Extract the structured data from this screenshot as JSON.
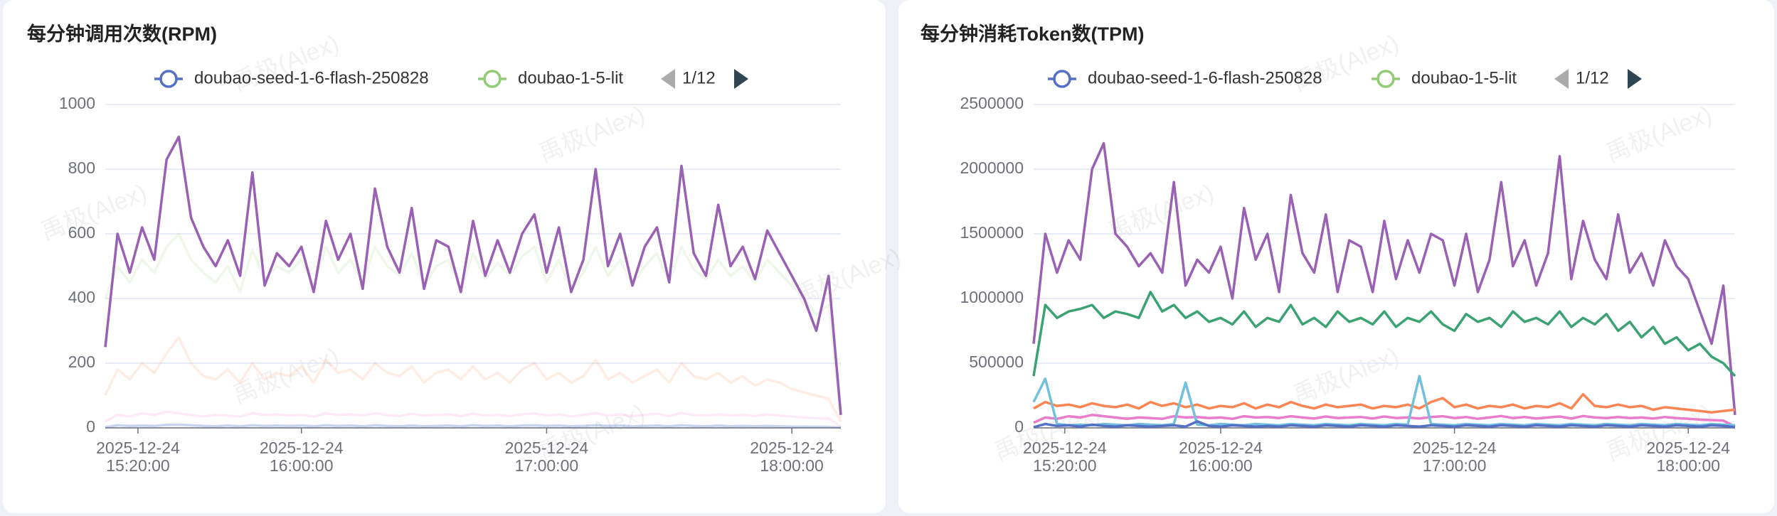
{
  "watermark": "禹极(Alex)",
  "chart_data": [
    {
      "type": "line",
      "title": "每分钟调用次数(RPM)",
      "legend": {
        "items": [
          {
            "name": "doubao-seed-1-6-flash-250828",
            "color": "#5470c6"
          },
          {
            "name": "doubao-1-5-lit",
            "color": "#91cc75"
          }
        ],
        "page": "1/12"
      },
      "xlim": [
        "2025-12-24 15:12:00",
        "2025-12-24 18:12:00"
      ],
      "xticks": [
        "2025-12-24 15:20:00",
        "2025-12-24 16:00:00",
        "2025-12-24 17:00:00",
        "2025-12-24 18:00:00"
      ],
      "ylim": [
        0,
        1000
      ],
      "yticks": [
        0,
        200,
        400,
        600,
        800,
        1000
      ],
      "grid": true,
      "x": [
        "2025-12-24 15:12:00",
        "2025-12-24 15:15:00",
        "2025-12-24 15:18:00",
        "2025-12-24 15:21:00",
        "2025-12-24 15:24:00",
        "2025-12-24 15:27:00",
        "2025-12-24 15:30:00",
        "2025-12-24 15:33:00",
        "2025-12-24 15:36:00",
        "2025-12-24 15:39:00",
        "2025-12-24 15:42:00",
        "2025-12-24 15:45:00",
        "2025-12-24 15:48:00",
        "2025-12-24 15:51:00",
        "2025-12-24 15:54:00",
        "2025-12-24 15:57:00",
        "2025-12-24 16:00:00",
        "2025-12-24 16:03:00",
        "2025-12-24 16:06:00",
        "2025-12-24 16:09:00",
        "2025-12-24 16:12:00",
        "2025-12-24 16:15:00",
        "2025-12-24 16:18:00",
        "2025-12-24 16:21:00",
        "2025-12-24 16:24:00",
        "2025-12-24 16:27:00",
        "2025-12-24 16:30:00",
        "2025-12-24 16:33:00",
        "2025-12-24 16:36:00",
        "2025-12-24 16:39:00",
        "2025-12-24 16:42:00",
        "2025-12-24 16:45:00",
        "2025-12-24 16:48:00",
        "2025-12-24 16:51:00",
        "2025-12-24 16:54:00",
        "2025-12-24 16:57:00",
        "2025-12-24 17:00:00",
        "2025-12-24 17:03:00",
        "2025-12-24 17:06:00",
        "2025-12-24 17:09:00",
        "2025-12-24 17:12:00",
        "2025-12-24 17:15:00",
        "2025-12-24 17:18:00",
        "2025-12-24 17:21:00",
        "2025-12-24 17:24:00",
        "2025-12-24 17:27:00",
        "2025-12-24 17:30:00",
        "2025-12-24 17:33:00",
        "2025-12-24 17:36:00",
        "2025-12-24 17:39:00",
        "2025-12-24 17:42:00",
        "2025-12-24 17:45:00",
        "2025-12-24 17:48:00",
        "2025-12-24 17:51:00",
        "2025-12-24 17:54:00",
        "2025-12-24 17:57:00",
        "2025-12-24 18:00:00",
        "2025-12-24 18:03:00",
        "2025-12-24 18:06:00",
        "2025-12-24 18:09:00",
        "2025-12-24 18:12:00"
      ],
      "series": [
        {
          "color": "#91cc75",
          "opacity": 0.15,
          "values": [
            400,
            500,
            450,
            520,
            480,
            560,
            600,
            520,
            480,
            450,
            500,
            420,
            550,
            460,
            500,
            480,
            520,
            440,
            560,
            480,
            520,
            450,
            560,
            500,
            470,
            540,
            440,
            500,
            520,
            430,
            540,
            460,
            510,
            470,
            530,
            560,
            450,
            520,
            430,
            480,
            560,
            470,
            520,
            440,
            500,
            540,
            450,
            560,
            490,
            460,
            520,
            470,
            500,
            450,
            520,
            480,
            440,
            400,
            350,
            380,
            30
          ]
        },
        {
          "color": "#fc8452",
          "opacity": 0.15,
          "values": [
            100,
            180,
            150,
            200,
            170,
            230,
            280,
            200,
            160,
            150,
            180,
            140,
            200,
            150,
            170,
            160,
            190,
            140,
            210,
            170,
            180,
            150,
            200,
            170,
            160,
            190,
            140,
            170,
            180,
            150,
            190,
            150,
            170,
            140,
            180,
            200,
            150,
            170,
            140,
            160,
            210,
            150,
            170,
            140,
            160,
            180,
            140,
            200,
            160,
            150,
            170,
            140,
            160,
            130,
            150,
            140,
            120,
            110,
            100,
            90,
            20
          ]
        },
        {
          "color": "#ea7ccc",
          "opacity": 0.15,
          "values": [
            20,
            40,
            35,
            45,
            40,
            50,
            45,
            40,
            35,
            40,
            38,
            35,
            45,
            40,
            42,
            38,
            40,
            35,
            45,
            40,
            42,
            38,
            45,
            40,
            36,
            44,
            38,
            40,
            42,
            36,
            44,
            38,
            40,
            36,
            42,
            45,
            38,
            42,
            35,
            40,
            46,
            38,
            42,
            36,
            40,
            44,
            36,
            46,
            40,
            38,
            42,
            38,
            40,
            36,
            42,
            38,
            35,
            32,
            30,
            28,
            5
          ]
        },
        {
          "color": "#5470c6",
          "opacity": 0.3,
          "values": [
            2,
            8,
            6,
            7,
            6,
            9,
            10,
            8,
            6,
            5,
            7,
            5,
            8,
            6,
            7,
            6,
            7,
            5,
            8,
            6,
            7,
            5,
            8,
            6,
            5,
            7,
            5,
            6,
            7,
            5,
            8,
            6,
            7,
            5,
            7,
            8,
            6,
            7,
            5,
            6,
            8,
            6,
            7,
            5,
            6,
            7,
            5,
            8,
            6,
            5,
            7,
            5,
            6,
            5,
            6,
            5,
            4,
            4,
            3,
            3,
            1
          ]
        },
        {
          "color": "#9a60b4",
          "opacity": 1,
          "values": [
            250,
            600,
            480,
            620,
            520,
            830,
            900,
            650,
            560,
            500,
            580,
            470,
            790,
            440,
            540,
            500,
            560,
            420,
            640,
            520,
            600,
            430,
            740,
            560,
            480,
            680,
            430,
            580,
            560,
            420,
            640,
            470,
            580,
            480,
            600,
            660,
            480,
            620,
            420,
            520,
            800,
            500,
            600,
            440,
            560,
            620,
            450,
            810,
            540,
            470,
            690,
            500,
            560,
            460,
            610,
            540,
            470,
            400,
            300,
            470,
            40
          ]
        }
      ]
    },
    {
      "type": "line",
      "title": "每分钟消耗Token数(TPM)",
      "legend": {
        "items": [
          {
            "name": "doubao-seed-1-6-flash-250828",
            "color": "#5470c6"
          },
          {
            "name": "doubao-1-5-lit",
            "color": "#91cc75"
          }
        ],
        "page": "1/12"
      },
      "xlim": [
        "2025-12-24 15:12:00",
        "2025-12-24 18:12:00"
      ],
      "xticks": [
        "2025-12-24 15:20:00",
        "2025-12-24 16:00:00",
        "2025-12-24 17:00:00",
        "2025-12-24 18:00:00"
      ],
      "ylim": [
        0,
        2500000
      ],
      "yticks": [
        0,
        500000,
        1000000,
        1500000,
        2000000,
        2500000
      ],
      "grid": true,
      "x": [
        "2025-12-24 15:12:00",
        "2025-12-24 15:15:00",
        "2025-12-24 15:18:00",
        "2025-12-24 15:21:00",
        "2025-12-24 15:24:00",
        "2025-12-24 15:27:00",
        "2025-12-24 15:30:00",
        "2025-12-24 15:33:00",
        "2025-12-24 15:36:00",
        "2025-12-24 15:39:00",
        "2025-12-24 15:42:00",
        "2025-12-24 15:45:00",
        "2025-12-24 15:48:00",
        "2025-12-24 15:51:00",
        "2025-12-24 15:54:00",
        "2025-12-24 15:57:00",
        "2025-12-24 16:00:00",
        "2025-12-24 16:03:00",
        "2025-12-24 16:06:00",
        "2025-12-24 16:09:00",
        "2025-12-24 16:12:00",
        "2025-12-24 16:15:00",
        "2025-12-24 16:18:00",
        "2025-12-24 16:21:00",
        "2025-12-24 16:24:00",
        "2025-12-24 16:27:00",
        "2025-12-24 16:30:00",
        "2025-12-24 16:33:00",
        "2025-12-24 16:36:00",
        "2025-12-24 16:39:00",
        "2025-12-24 16:42:00",
        "2025-12-24 16:45:00",
        "2025-12-24 16:48:00",
        "2025-12-24 16:51:00",
        "2025-12-24 16:54:00",
        "2025-12-24 16:57:00",
        "2025-12-24 17:00:00",
        "2025-12-24 17:03:00",
        "2025-12-24 17:06:00",
        "2025-12-24 17:09:00",
        "2025-12-24 17:12:00",
        "2025-12-24 17:15:00",
        "2025-12-24 17:18:00",
        "2025-12-24 17:21:00",
        "2025-12-24 17:24:00",
        "2025-12-24 17:27:00",
        "2025-12-24 17:30:00",
        "2025-12-24 17:33:00",
        "2025-12-24 17:36:00",
        "2025-12-24 17:39:00",
        "2025-12-24 17:42:00",
        "2025-12-24 17:45:00",
        "2025-12-24 17:48:00",
        "2025-12-24 17:51:00",
        "2025-12-24 17:54:00",
        "2025-12-24 17:57:00",
        "2025-12-24 18:00:00",
        "2025-12-24 18:03:00",
        "2025-12-24 18:06:00",
        "2025-12-24 18:09:00",
        "2025-12-24 18:12:00"
      ],
      "series": [
        {
          "color": "#9a60b4",
          "opacity": 1,
          "values": [
            650000,
            1500000,
            1200000,
            1450000,
            1300000,
            2000000,
            2200000,
            1500000,
            1400000,
            1250000,
            1350000,
            1200000,
            1900000,
            1100000,
            1300000,
            1200000,
            1400000,
            1000000,
            1700000,
            1300000,
            1500000,
            1050000,
            1800000,
            1350000,
            1200000,
            1650000,
            1050000,
            1450000,
            1400000,
            1050000,
            1600000,
            1150000,
            1450000,
            1200000,
            1500000,
            1450000,
            1100000,
            1500000,
            1050000,
            1300000,
            1900000,
            1250000,
            1450000,
            1100000,
            1350000,
            2100000,
            1150000,
            1600000,
            1300000,
            1150000,
            1650000,
            1200000,
            1350000,
            1100000,
            1450000,
            1250000,
            1150000,
            900000,
            650000,
            1100000,
            100000
          ]
        },
        {
          "color": "#3ba272",
          "opacity": 1,
          "values": [
            400000,
            950000,
            850000,
            900000,
            920000,
            950000,
            850000,
            900000,
            880000,
            850000,
            1050000,
            900000,
            950000,
            850000,
            900000,
            820000,
            850000,
            800000,
            900000,
            780000,
            850000,
            820000,
            950000,
            800000,
            850000,
            780000,
            900000,
            820000,
            850000,
            800000,
            900000,
            780000,
            850000,
            820000,
            900000,
            800000,
            750000,
            880000,
            820000,
            850000,
            780000,
            900000,
            820000,
            850000,
            800000,
            900000,
            780000,
            850000,
            800000,
            880000,
            750000,
            820000,
            700000,
            780000,
            650000,
            700000,
            600000,
            650000,
            550000,
            500000,
            400000
          ]
        },
        {
          "color": "#fc8452",
          "opacity": 1,
          "values": [
            150000,
            200000,
            170000,
            180000,
            160000,
            190000,
            170000,
            160000,
            180000,
            150000,
            200000,
            170000,
            190000,
            160000,
            180000,
            150000,
            170000,
            160000,
            190000,
            150000,
            180000,
            160000,
            200000,
            170000,
            150000,
            180000,
            160000,
            170000,
            180000,
            150000,
            170000,
            160000,
            180000,
            150000,
            200000,
            230000,
            160000,
            180000,
            150000,
            170000,
            160000,
            180000,
            150000,
            170000,
            160000,
            190000,
            150000,
            260000,
            170000,
            160000,
            180000,
            160000,
            170000,
            140000,
            160000,
            150000,
            140000,
            130000,
            120000,
            130000,
            140000
          ]
        },
        {
          "color": "#ea7ccc",
          "opacity": 1,
          "values": [
            40000,
            80000,
            70000,
            90000,
            80000,
            100000,
            90000,
            80000,
            70000,
            80000,
            76000,
            70000,
            90000,
            80000,
            84000,
            76000,
            80000,
            70000,
            90000,
            80000,
            84000,
            76000,
            90000,
            80000,
            72000,
            88000,
            76000,
            80000,
            84000,
            72000,
            88000,
            76000,
            80000,
            72000,
            84000,
            90000,
            76000,
            84000,
            70000,
            80000,
            92000,
            76000,
            84000,
            72000,
            80000,
            88000,
            72000,
            92000,
            80000,
            76000,
            84000,
            76000,
            80000,
            72000,
            84000,
            76000,
            70000,
            64000,
            60000,
            56000,
            10000
          ]
        },
        {
          "color": "#73c0de",
          "opacity": 1,
          "values": [
            200000,
            380000,
            30000,
            20000,
            25000,
            20000,
            30000,
            25000,
            20000,
            30000,
            25000,
            20000,
            30000,
            350000,
            25000,
            20000,
            30000,
            25000,
            20000,
            30000,
            25000,
            20000,
            30000,
            25000,
            20000,
            30000,
            25000,
            20000,
            30000,
            25000,
            20000,
            30000,
            25000,
            400000,
            30000,
            25000,
            20000,
            30000,
            25000,
            20000,
            30000,
            25000,
            20000,
            30000,
            25000,
            20000,
            30000,
            25000,
            20000,
            30000,
            25000,
            20000,
            30000,
            25000,
            20000,
            30000,
            25000,
            20000,
            30000,
            25000,
            20000
          ]
        },
        {
          "color": "#5470c6",
          "opacity": 1,
          "values": [
            5000,
            30000,
            15000,
            20000,
            10000,
            25000,
            15000,
            10000,
            20000,
            15000,
            10000,
            15000,
            20000,
            10000,
            50000,
            15000,
            10000,
            20000,
            15000,
            10000,
            15000,
            10000,
            20000,
            15000,
            10000,
            20000,
            15000,
            10000,
            20000,
            15000,
            10000,
            20000,
            15000,
            10000,
            20000,
            15000,
            10000,
            20000,
            15000,
            10000,
            20000,
            15000,
            10000,
            20000,
            15000,
            10000,
            20000,
            15000,
            10000,
            20000,
            15000,
            10000,
            20000,
            15000,
            10000,
            20000,
            15000,
            10000,
            20000,
            15000,
            5000
          ]
        }
      ]
    }
  ]
}
